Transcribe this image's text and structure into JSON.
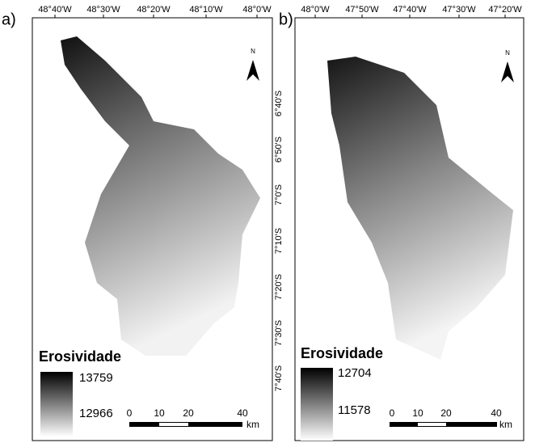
{
  "panels": [
    {
      "label": "a)",
      "top_ticks": [
        "48°40'W",
        "48°30'W",
        "48°20'W",
        "48°10'W",
        "48°0'W"
      ],
      "right_ticks": [
        "6°40'S",
        "6°50'S",
        "7°0'S",
        "7°10'S",
        "7°20'S",
        "7°30'S",
        "7°40'S"
      ],
      "north": "N",
      "legend_title": "Erosividade",
      "legend_max": "13759",
      "legend_min": "12966",
      "scale_ticks": [
        "0",
        "10",
        "20",
        "40"
      ],
      "scale_unit": "km"
    },
    {
      "label": "b)",
      "top_ticks": [
        "48°0'W",
        "47°50'W",
        "47°40'W",
        "47°30'W",
        "47°20'W"
      ],
      "right_ticks": [],
      "north": "N",
      "legend_title": "Erosividade",
      "legend_max": "12704",
      "legend_min": "11578",
      "scale_ticks": [
        "0",
        "10",
        "20",
        "40"
      ],
      "scale_unit": "km"
    }
  ]
}
